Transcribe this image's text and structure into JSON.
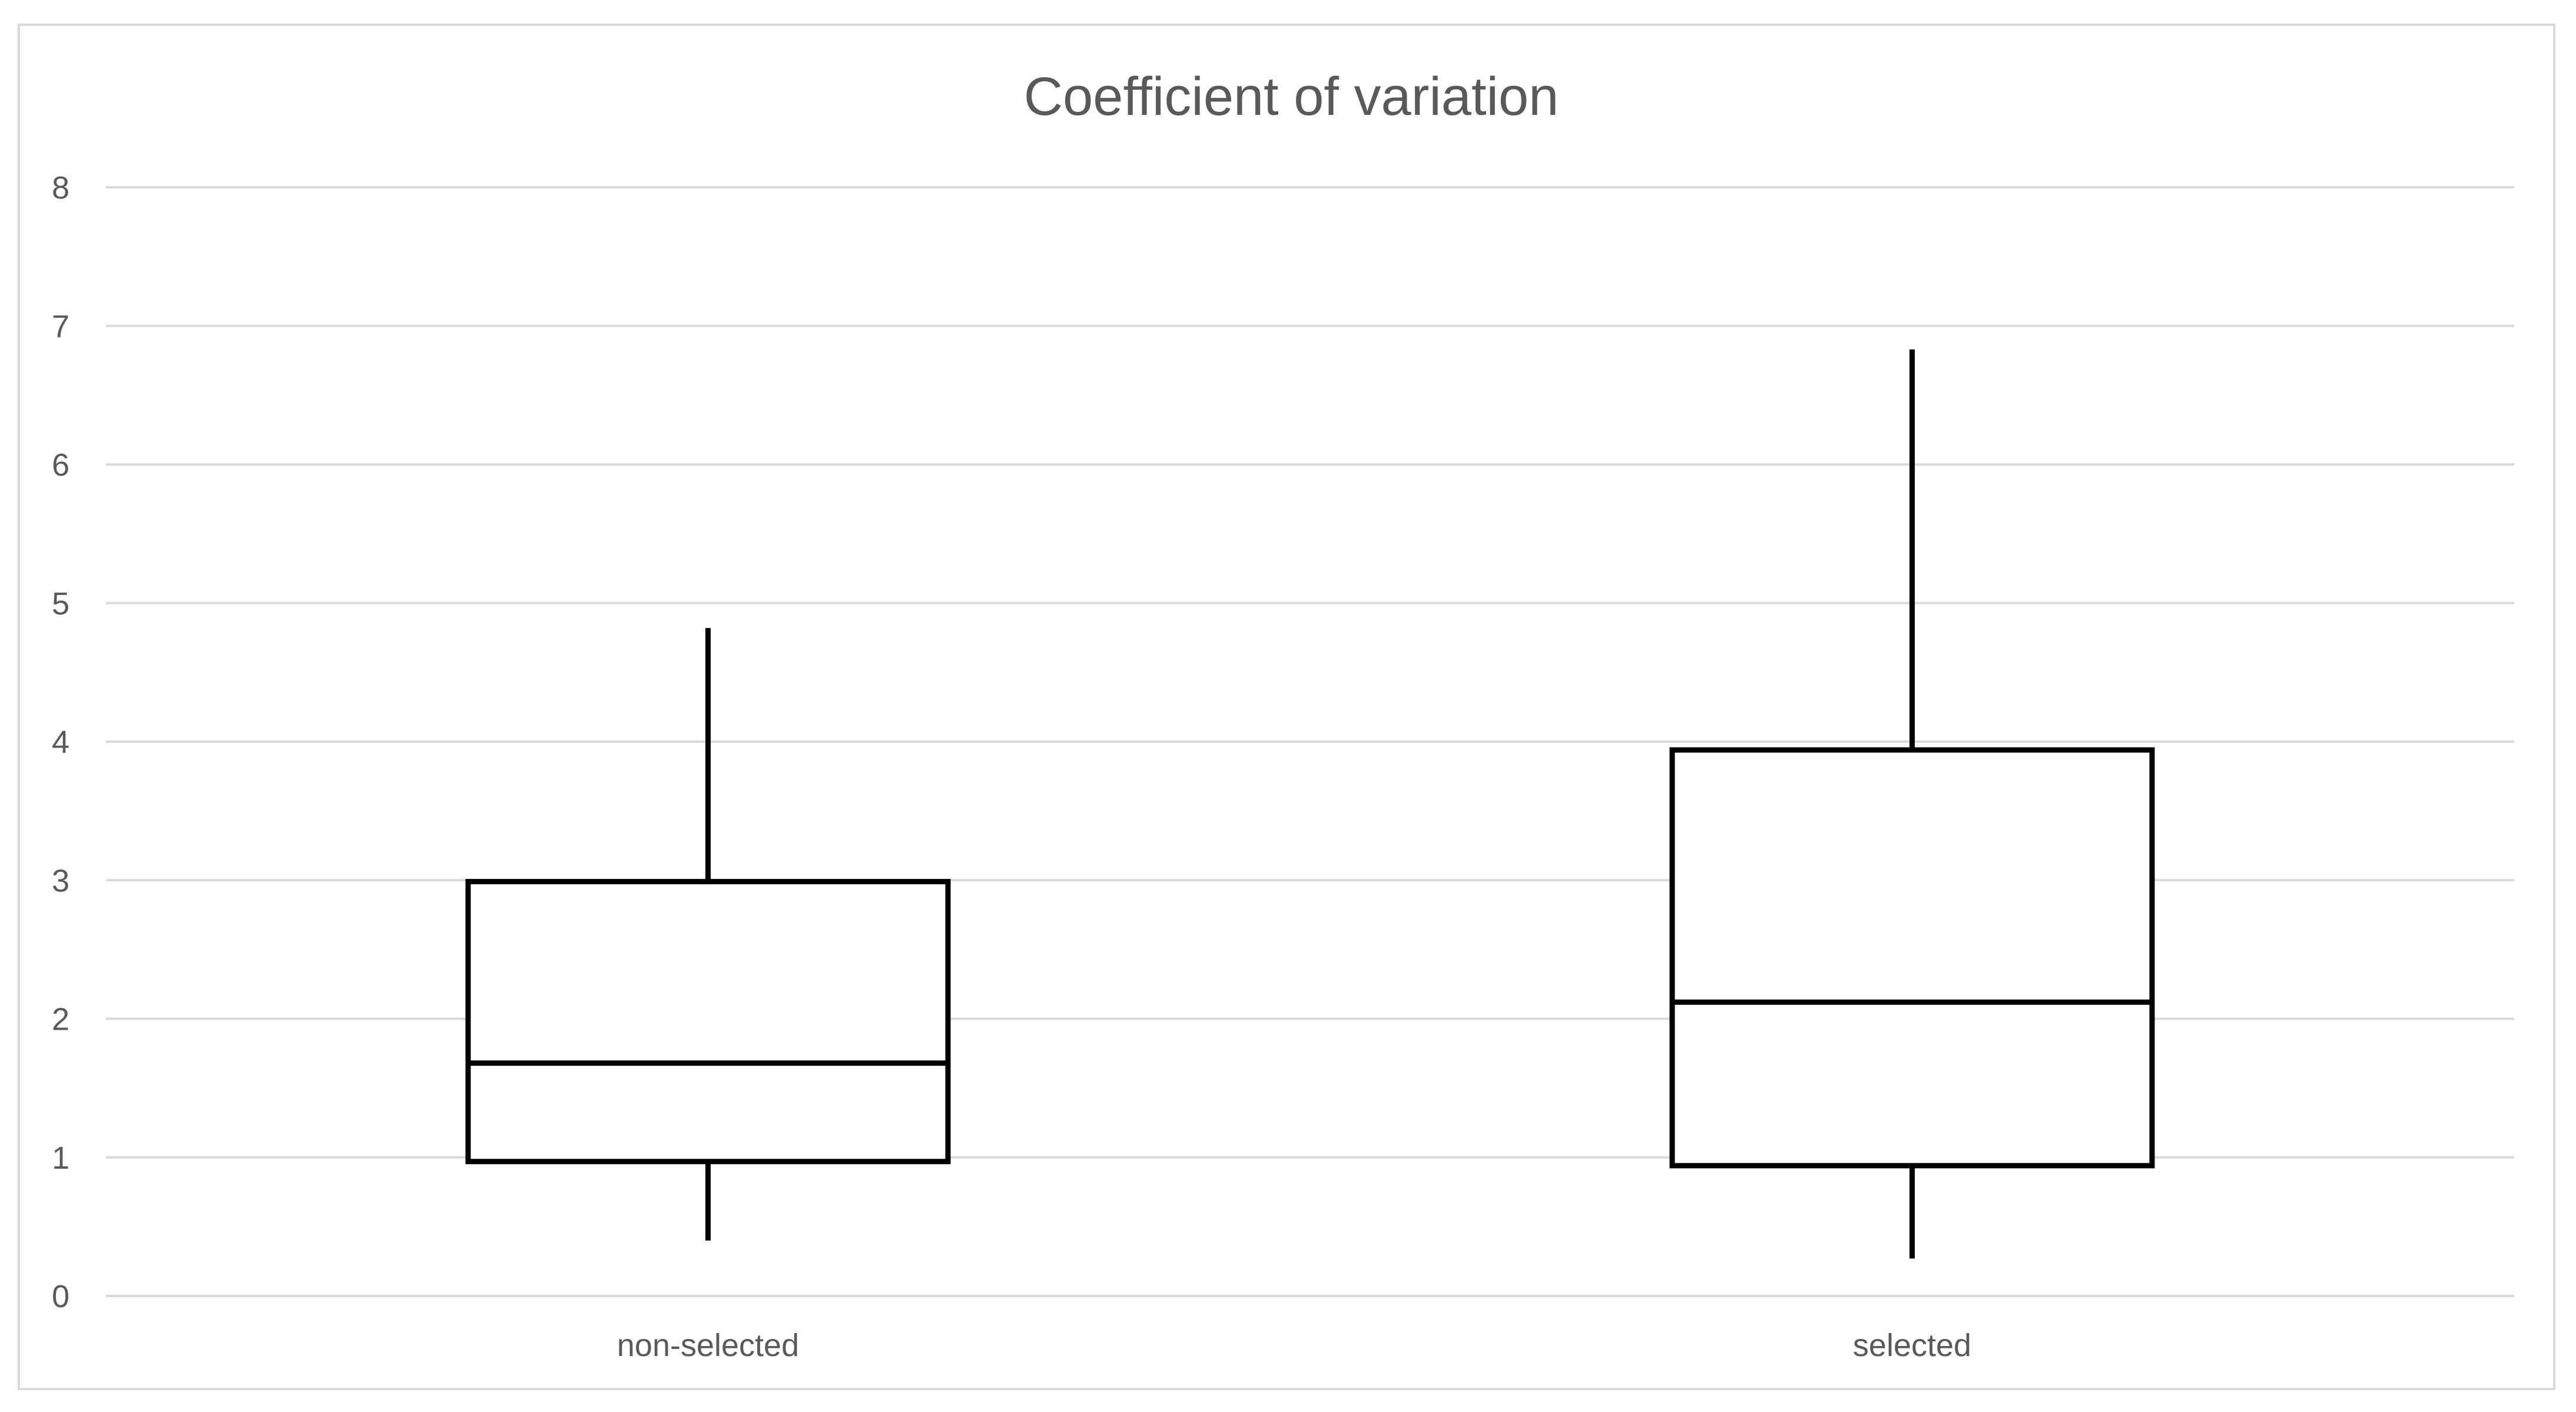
{
  "chart_data": {
    "type": "boxplot",
    "title": "Coefficient of variation",
    "xlabel": "",
    "ylabel": "",
    "ylim": [
      0,
      8
    ],
    "yticks": [
      "0",
      "1",
      "2",
      "3",
      "4",
      "5",
      "6",
      "7",
      "8"
    ],
    "categories": [
      "non-selected",
      "selected"
    ],
    "boxes": [
      {
        "category": "non-selected",
        "min": 0.4,
        "q1": 0.97,
        "median": 1.68,
        "q3": 2.99,
        "max": 4.82
      },
      {
        "category": "selected",
        "min": 0.27,
        "q1": 0.94,
        "median": 2.12,
        "q3": 3.94,
        "max": 6.83
      }
    ],
    "grid": true,
    "legend": "none",
    "colors": {
      "box_stroke": "#000000",
      "grid": "#d9d9d9",
      "text": "#595959",
      "frame": "#d9d9d9"
    }
  }
}
